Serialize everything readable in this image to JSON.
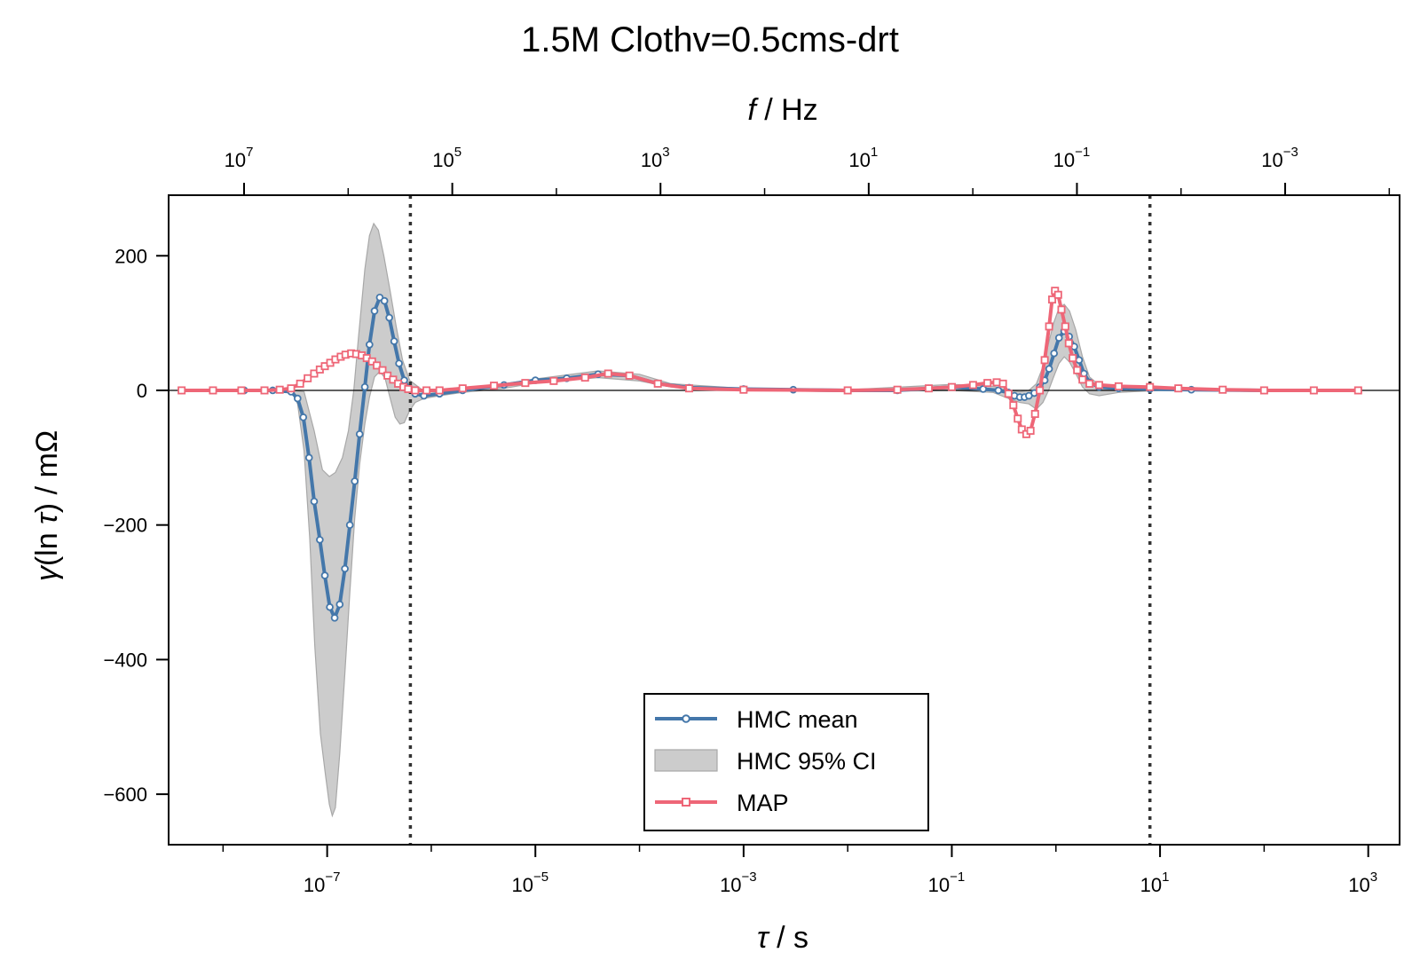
{
  "chart_data": {
    "type": "line",
    "title": "1.5M Clothv=0.5cms-drt",
    "xlabel_symbol": "τ",
    "xlabel_unit": " / s",
    "x2label_symbol": "f",
    "x2label_unit": " / Hz",
    "ylabel_symbol": "γ",
    "ylabel_mid": "(ln ",
    "ylabel_tau": "τ",
    "ylabel_unit": ") / mΩ",
    "xscale": "log",
    "xlim": [
      3e-09,
      2000
    ],
    "ylim": [
      -675,
      290
    ],
    "x_ticks": [
      {
        "base": "10",
        "exp": "−7",
        "value": 1e-07
      },
      {
        "base": "10",
        "exp": "−5",
        "value": 1e-05
      },
      {
        "base": "10",
        "exp": "−3",
        "value": 0.001
      },
      {
        "base": "10",
        "exp": "−1",
        "value": 0.1
      },
      {
        "base": "10",
        "exp": "1",
        "value": 10
      },
      {
        "base": "10",
        "exp": "3",
        "value": 1000
      }
    ],
    "x2_ticks": [
      {
        "base": "10",
        "exp": "7",
        "value": 10000000.0
      },
      {
        "base": "10",
        "exp": "5",
        "value": 100000.0
      },
      {
        "base": "10",
        "exp": "3",
        "value": 1000.0
      },
      {
        "base": "10",
        "exp": "1",
        "value": 10
      },
      {
        "base": "10",
        "exp": "−1",
        "value": 0.1
      },
      {
        "base": "10",
        "exp": "−3",
        "value": 0.001
      }
    ],
    "y_ticks": [
      {
        "label": "200",
        "value": 200
      },
      {
        "label": "0",
        "value": 0
      },
      {
        "label": "−200",
        "value": -200
      },
      {
        "label": "−400",
        "value": -400
      },
      {
        "label": "−600",
        "value": -600
      }
    ],
    "vlines": [
      6.3e-07,
      8.0
    ],
    "hline": 0,
    "legend": {
      "placement": "lower center",
      "items": [
        {
          "label": "HMC mean",
          "kind": "line-circle",
          "color": "#4477aa"
        },
        {
          "label": "HMC 95% CI",
          "kind": "band",
          "color": "#bbbbbb"
        },
        {
          "label": "MAP",
          "kind": "line-square",
          "color": "#ee6677"
        }
      ]
    },
    "colors": {
      "hmc_mean": "#4477aa",
      "ci_band": "#bbbbbb",
      "map": "#ee6677",
      "vline": "#333333"
    },
    "series": [
      {
        "name": "HMC mean",
        "points": [
          [
            4e-09,
            0
          ],
          [
            8e-09,
            0
          ],
          [
            1.6e-08,
            0
          ],
          [
            3e-08,
            0
          ],
          [
            4.5e-08,
            -2
          ],
          [
            5.2e-08,
            -12
          ],
          [
            5.9e-08,
            -40
          ],
          [
            6.7e-08,
            -100
          ],
          [
            7.5e-08,
            -165
          ],
          [
            8.5e-08,
            -222
          ],
          [
            9.5e-08,
            -275
          ],
          [
            1.06e-07,
            -322
          ],
          [
            1.18e-07,
            -338
          ],
          [
            1.32e-07,
            -318
          ],
          [
            1.48e-07,
            -265
          ],
          [
            1.65e-07,
            -200
          ],
          [
            1.84e-07,
            -135
          ],
          [
            2.05e-07,
            -65
          ],
          [
            2.3e-07,
            5
          ],
          [
            2.55e-07,
            68
          ],
          [
            2.85e-07,
            118
          ],
          [
            3.2e-07,
            138
          ],
          [
            3.55e-07,
            133
          ],
          [
            3.95e-07,
            108
          ],
          [
            4.4e-07,
            73
          ],
          [
            4.9e-07,
            40
          ],
          [
            5.5e-07,
            15
          ],
          [
            6.2e-07,
            2
          ],
          [
            7e-07,
            -5
          ],
          [
            8.5e-07,
            -8
          ],
          [
            1.2e-06,
            -5
          ],
          [
            2e-06,
            0
          ],
          [
            5e-06,
            8
          ],
          [
            1e-05,
            15
          ],
          [
            2e-05,
            18
          ],
          [
            4e-05,
            24
          ],
          [
            8e-05,
            22
          ],
          [
            0.00015,
            10
          ],
          [
            0.0003,
            4
          ],
          [
            0.001,
            2
          ],
          [
            0.003,
            1
          ],
          [
            0.01,
            0
          ],
          [
            0.03,
            0
          ],
          [
            0.06,
            3
          ],
          [
            0.1,
            5
          ],
          [
            0.2,
            2
          ],
          [
            0.28,
            0
          ],
          [
            0.35,
            -3
          ],
          [
            0.4,
            -8
          ],
          [
            0.45,
            -10
          ],
          [
            0.5,
            -10
          ],
          [
            0.55,
            -8
          ],
          [
            0.62,
            -4
          ],
          [
            0.7,
            5
          ],
          [
            0.78,
            15
          ],
          [
            0.86,
            32
          ],
          [
            0.96,
            55
          ],
          [
            1.07,
            78
          ],
          [
            1.2,
            88
          ],
          [
            1.34,
            80
          ],
          [
            1.5,
            65
          ],
          [
            1.67,
            45
          ],
          [
            1.86,
            25
          ],
          [
            2.1,
            12
          ],
          [
            2.6,
            5
          ],
          [
            4,
            3
          ],
          [
            8,
            2
          ],
          [
            20,
            1
          ],
          [
            100,
            0
          ],
          [
            800,
            0
          ]
        ]
      },
      {
        "name": "MAP",
        "points": [
          [
            4e-09,
            0
          ],
          [
            8e-09,
            0
          ],
          [
            1.5e-08,
            0
          ],
          [
            2.5e-08,
            0
          ],
          [
            3.5e-08,
            1
          ],
          [
            4.5e-08,
            3
          ],
          [
            5.5e-08,
            10
          ],
          [
            6.5e-08,
            18
          ],
          [
            7.5e-08,
            25
          ],
          [
            8.5e-08,
            31
          ],
          [
            9.5e-08,
            36
          ],
          [
            1.07e-07,
            41
          ],
          [
            1.2e-07,
            46
          ],
          [
            1.35e-07,
            50
          ],
          [
            1.5e-07,
            53
          ],
          [
            1.7e-07,
            55
          ],
          [
            1.9e-07,
            54
          ],
          [
            2.15e-07,
            52
          ],
          [
            2.4e-07,
            48
          ],
          [
            2.7e-07,
            43
          ],
          [
            3e-07,
            37
          ],
          [
            3.4e-07,
            30
          ],
          [
            3.8e-07,
            22
          ],
          [
            4.3e-07,
            16
          ],
          [
            4.8e-07,
            10
          ],
          [
            5.4e-07,
            5
          ],
          [
            6e-07,
            2
          ],
          [
            7e-07,
            0
          ],
          [
            9e-07,
            0
          ],
          [
            1.2e-06,
            0
          ],
          [
            2e-06,
            3
          ],
          [
            4e-06,
            7
          ],
          [
            8e-06,
            11
          ],
          [
            1.5e-05,
            14
          ],
          [
            3e-05,
            19
          ],
          [
            5e-05,
            25
          ],
          [
            8e-05,
            22
          ],
          [
            0.00015,
            10
          ],
          [
            0.0003,
            3
          ],
          [
            0.001,
            1
          ],
          [
            0.01,
            0
          ],
          [
            0.03,
            1
          ],
          [
            0.06,
            3
          ],
          [
            0.1,
            5
          ],
          [
            0.16,
            8
          ],
          [
            0.22,
            11
          ],
          [
            0.27,
            12
          ],
          [
            0.31,
            10
          ],
          [
            0.35,
            -5
          ],
          [
            0.39,
            -22
          ],
          [
            0.43,
            -42
          ],
          [
            0.47,
            -58
          ],
          [
            0.52,
            -65
          ],
          [
            0.57,
            -60
          ],
          [
            0.63,
            -35
          ],
          [
            0.7,
            0
          ],
          [
            0.78,
            45
          ],
          [
            0.86,
            95
          ],
          [
            0.92,
            135
          ],
          [
            0.98,
            148
          ],
          [
            1.05,
            142
          ],
          [
            1.13,
            120
          ],
          [
            1.23,
            95
          ],
          [
            1.33,
            70
          ],
          [
            1.45,
            48
          ],
          [
            1.6,
            30
          ],
          [
            1.8,
            16
          ],
          [
            2.1,
            10
          ],
          [
            2.6,
            8
          ],
          [
            4,
            6
          ],
          [
            8,
            5
          ],
          [
            15,
            3
          ],
          [
            40,
            1
          ],
          [
            100,
            0
          ],
          [
            300,
            0
          ],
          [
            800,
            0
          ]
        ]
      }
    ],
    "ci_band": {
      "name": "HMC 95% CI",
      "upper": [
        [
          4e-09,
          0
        ],
        [
          4.5e-08,
          0
        ],
        [
          6e-08,
          -2
        ],
        [
          7.5e-08,
          -60
        ],
        [
          9e-08,
          -118
        ],
        [
          1.05e-07,
          -128
        ],
        [
          1.2e-07,
          -122
        ],
        [
          1.4e-07,
          -100
        ],
        [
          1.6e-07,
          -60
        ],
        [
          1.8e-07,
          0
        ],
        [
          2e-07,
          80
        ],
        [
          2.3e-07,
          180
        ],
        [
          2.55e-07,
          230
        ],
        [
          2.8e-07,
          248
        ],
        [
          3.1e-07,
          238
        ],
        [
          3.5e-07,
          200
        ],
        [
          4e-07,
          150
        ],
        [
          4.6e-07,
          95
        ],
        [
          5.3e-07,
          45
        ],
        [
          6.2e-07,
          15
        ],
        [
          8e-07,
          2
        ],
        [
          1.2e-06,
          0
        ],
        [
          3e-06,
          4
        ],
        [
          1e-05,
          17
        ],
        [
          4e-05,
          29
        ],
        [
          0.0001,
          24
        ],
        [
          0.0002,
          10
        ],
        [
          0.001,
          3
        ],
        [
          0.01,
          1
        ],
        [
          0.1,
          9
        ],
        [
          0.25,
          6
        ],
        [
          0.35,
          0
        ],
        [
          0.45,
          -2
        ],
        [
          0.55,
          0
        ],
        [
          0.65,
          10
        ],
        [
          0.75,
          35
        ],
        [
          0.85,
          70
        ],
        [
          0.95,
          100
        ],
        [
          1.07,
          122
        ],
        [
          1.2,
          128
        ],
        [
          1.35,
          118
        ],
        [
          1.55,
          90
        ],
        [
          1.8,
          50
        ],
        [
          2.1,
          20
        ],
        [
          2.6,
          8
        ],
        [
          5,
          4
        ],
        [
          20,
          2
        ],
        [
          100,
          1
        ],
        [
          800,
          0
        ]
      ],
      "lower": [
        [
          4e-09,
          0
        ],
        [
          4.5e-08,
          0
        ],
        [
          5.2e-08,
          -20
        ],
        [
          6e-08,
          -90
        ],
        [
          6.8e-08,
          -220
        ],
        [
          7.6e-08,
          -380
        ],
        [
          8.6e-08,
          -510
        ],
        [
          9.6e-08,
          -570
        ],
        [
          1.05e-07,
          -615
        ],
        [
          1.12e-07,
          -632
        ],
        [
          1.2e-07,
          -620
        ],
        [
          1.32e-07,
          -540
        ],
        [
          1.48e-07,
          -420
        ],
        [
          1.65e-07,
          -300
        ],
        [
          1.84e-07,
          -190
        ],
        [
          2.05e-07,
          -110
        ],
        [
          2.3e-07,
          -50
        ],
        [
          2.55e-07,
          -10
        ],
        [
          2.85e-07,
          20
        ],
        [
          3.2e-07,
          28
        ],
        [
          3.6e-07,
          18
        ],
        [
          4e-07,
          -10
        ],
        [
          4.5e-07,
          -40
        ],
        [
          5e-07,
          -50
        ],
        [
          5.5e-07,
          -48
        ],
        [
          6.2e-07,
          -30
        ],
        [
          7e-07,
          -18
        ],
        [
          8.5e-07,
          -12
        ],
        [
          1.2e-06,
          -8
        ],
        [
          2e-06,
          -3
        ],
        [
          5e-06,
          3
        ],
        [
          1e-05,
          11
        ],
        [
          4e-05,
          19
        ],
        [
          0.0001,
          14
        ],
        [
          0.0002,
          5
        ],
        [
          0.001,
          0
        ],
        [
          0.01,
          -2
        ],
        [
          0.1,
          0
        ],
        [
          0.25,
          -3
        ],
        [
          0.35,
          -12
        ],
        [
          0.45,
          -18
        ],
        [
          0.55,
          -20
        ],
        [
          0.65,
          -28
        ],
        [
          0.75,
          -18
        ],
        [
          0.85,
          0
        ],
        [
          0.95,
          20
        ],
        [
          1.07,
          40
        ],
        [
          1.2,
          50
        ],
        [
          1.35,
          42
        ],
        [
          1.55,
          25
        ],
        [
          1.8,
          5
        ],
        [
          2.1,
          -5
        ],
        [
          2.6,
          -8
        ],
        [
          4,
          -3
        ],
        [
          10,
          0
        ],
        [
          100,
          0
        ],
        [
          800,
          0
        ]
      ]
    }
  }
}
